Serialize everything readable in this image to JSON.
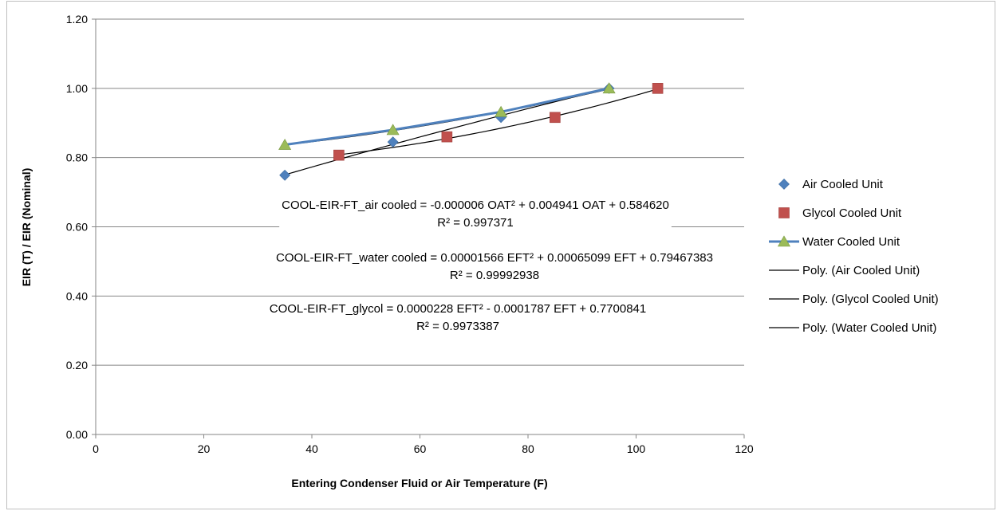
{
  "chart_data": {
    "type": "scatter",
    "xlabel": "Entering Condenser Fluid or Air Temperature (F)",
    "ylabel": "EIR (T) / EIR (Nominal)",
    "xlim": [
      0,
      120
    ],
    "ylim": [
      0.0,
      1.2
    ],
    "x_ticks": [
      "0",
      "20",
      "40",
      "60",
      "80",
      "100",
      "120"
    ],
    "y_ticks": [
      "0.00",
      "0.20",
      "0.40",
      "0.60",
      "0.80",
      "1.00",
      "1.20"
    ],
    "grid": "horizontal major gridlines",
    "legend_position": "right",
    "series": [
      {
        "name": "Air Cooled Unit",
        "marker": "diamond",
        "color": "#4F81BD",
        "x": [
          35,
          55,
          75,
          95
        ],
        "y": [
          0.749,
          0.845,
          0.916,
          1.0
        ]
      },
      {
        "name": "Glycol Cooled Unit",
        "marker": "square",
        "color": "#C0504D",
        "x": [
          45,
          65,
          85,
          104
        ],
        "y": [
          0.807,
          0.86,
          0.916,
          1.0
        ]
      },
      {
        "name": "Water Cooled Unit",
        "marker": "triangle",
        "line": true,
        "color": "#9BBB59",
        "line_color": "#4F81BD",
        "x": [
          35,
          55,
          75,
          95
        ],
        "y": [
          0.837,
          0.88,
          0.932,
          1.0
        ]
      }
    ],
    "trendlines": [
      {
        "name": "Poly. (Air Cooled Unit)",
        "a": -6e-06,
        "b": 0.004941,
        "c": 0.58462,
        "x_range": [
          35,
          95
        ],
        "color": "#000000"
      },
      {
        "name": "Poly. (Glycol Cooled Unit)",
        "a": 2.28e-05,
        "b": -0.0001787,
        "c": 0.7700841,
        "x_range": [
          45,
          104
        ],
        "color": "#000000"
      },
      {
        "name": "Poly. (Water Cooled Unit)",
        "a": 1.566e-05,
        "b": 0.00065099,
        "c": 0.79467383,
        "x_range": [
          35,
          95
        ],
        "color": "#000000"
      }
    ],
    "annotations": [
      {
        "equation": "COOL-EIR-FT_air cooled = -0.000006 OAT² + 0.004941 OAT + 0.584620",
        "r2": "R² = 0.997371"
      },
      {
        "equation": "COOL-EIR-FT_water cooled = 0.00001566 EFT² + 0.00065099 EFT + 0.79467383",
        "r2": "R² = 0.99992938"
      },
      {
        "equation": "COOL-EIR-FT_glycol = 0.0000228 EFT² - 0.0001787 EFT + 0.7700841",
        "r2": "R² = 0.9973387"
      }
    ]
  }
}
